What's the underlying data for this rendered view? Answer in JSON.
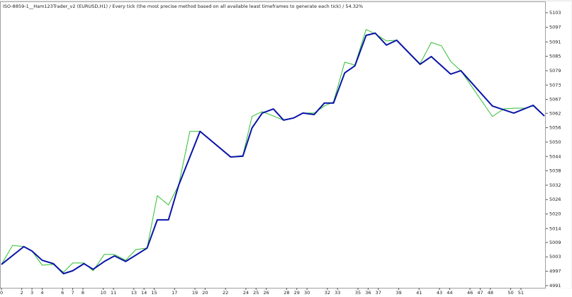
{
  "chart_data": {
    "type": "line",
    "title": "ISO-8859-1__Ham123Trader_v2 (EURUSD,H1) / Every tick (the most precise method based on all available least timeframes to generate each tick) / 54.32%",
    "xlim": [
      0,
      53.3
    ],
    "xticks": [
      0,
      2,
      3,
      4,
      6,
      7,
      8,
      10,
      11,
      13,
      14,
      15,
      17,
      19,
      20,
      22,
      24,
      25,
      26,
      28,
      29,
      30,
      32,
      33,
      35,
      36,
      37,
      39,
      41,
      43,
      44,
      46,
      47,
      48,
      50,
      51
    ],
    "ylim": [
      4990.1,
      5105.3
    ],
    "yticks": [
      4991,
      {
        "value": 4996.9,
        "label": "4997"
      },
      {
        "value": 5002.8,
        "label": "5003"
      },
      {
        "value": 5008.7,
        "label": "5009"
      },
      {
        "value": 5014.4,
        "label": "5014"
      },
      {
        "value": 5020.4,
        "label": "5020"
      },
      {
        "value": 5026.3,
        "label": "5026"
      },
      {
        "value": 5032.2,
        "label": "5032"
      },
      {
        "value": 5038.1,
        "label": "5038"
      },
      5044,
      {
        "value": 5049.9,
        "label": "5050"
      },
      {
        "value": 5055.8,
        "label": "5056"
      },
      {
        "value": 5061.7,
        "label": "5062"
      },
      {
        "value": 5067.4,
        "label": "5067"
      },
      {
        "value": 5073.3,
        "label": "5073"
      },
      {
        "value": 5079.2,
        "label": "5079"
      },
      {
        "value": 5085.1,
        "label": "5085"
      },
      {
        "value": 5091.0,
        "label": "5091"
      },
      {
        "value": 5097.0,
        "label": "5097"
      },
      5103
    ],
    "series": [
      {
        "color": "#2fbf2f",
        "width": 1,
        "x": [
          0,
          1.1,
          2.2,
          3.0,
          4.0,
          5.1,
          6.1,
          7.0,
          8.1,
          9.0,
          10.1,
          11.1,
          12.2,
          13.2,
          14.3,
          15.3,
          16.4,
          17.4,
          18.5,
          19.5,
          22.5,
          23.7,
          24.6,
          25.6,
          26.7,
          27.7,
          28.7,
          29.6,
          30.7,
          31.7,
          32.6,
          33.7,
          34.7,
          35.8,
          36.7,
          37.8,
          38.8,
          41.1,
          42.2,
          43.2,
          44.1,
          45.1,
          48.2,
          49.3,
          50.3,
          51.4,
          52.2,
          53.3
        ],
        "values": [
          4999.7,
          5007.5,
          5007.0,
          5005.2,
          4999.4,
          4999.7,
          4996.5,
          5000.3,
          5000.3,
          4997.1,
          5003.8,
          5003.8,
          5001.4,
          5005.8,
          5006.4,
          5027.9,
          5024.1,
          5032.2,
          5054.3,
          5054.3,
          5043.8,
          5044.4,
          5060.4,
          5062.4,
          5060.6,
          5058.9,
          5059.8,
          5061.8,
          5061.8,
          5064.7,
          5066.4,
          5082.7,
          5081.5,
          5096.1,
          5094.3,
          5091.4,
          5091.7,
          5082.1,
          5090.8,
          5089.4,
          5083.0,
          5079.2,
          5060.4,
          5063.5,
          5063.8,
          5063.8,
          5064.7,
          5060.6
        ]
      },
      {
        "color": "#0a14a8",
        "width": 2,
        "x": [
          0,
          2.2,
          3.0,
          4.0,
          5.1,
          6.1,
          7.0,
          8.1,
          9.0,
          10.1,
          11.1,
          12.2,
          14.3,
          15.3,
          16.4,
          17.4,
          19.5,
          22.5,
          23.7,
          24.6,
          25.6,
          26.7,
          27.7,
          28.7,
          29.6,
          30.7,
          31.7,
          32.6,
          33.7,
          34.7,
          35.8,
          36.7,
          37.8,
          38.8,
          41.1,
          42.2,
          44.1,
          45.1,
          48.2,
          50.3,
          52.2,
          53.3
        ],
        "values": [
          4999.7,
          5007.0,
          5005.2,
          5001.4,
          5000.0,
          4995.9,
          4997.1,
          5000.0,
          4997.7,
          5000.9,
          5003.2,
          5000.9,
          5006.4,
          5018.0,
          5018.0,
          5032.2,
          5054.3,
          5043.8,
          5044.1,
          5055.7,
          5061.8,
          5063.5,
          5058.9,
          5059.8,
          5061.8,
          5061.2,
          5065.9,
          5065.9,
          5078.3,
          5081.2,
          5093.7,
          5094.6,
          5089.7,
          5091.7,
          5081.8,
          5085.0,
          5077.8,
          5079.2,
          5064.7,
          5061.8,
          5065.0,
          5060.6
        ]
      }
    ]
  }
}
